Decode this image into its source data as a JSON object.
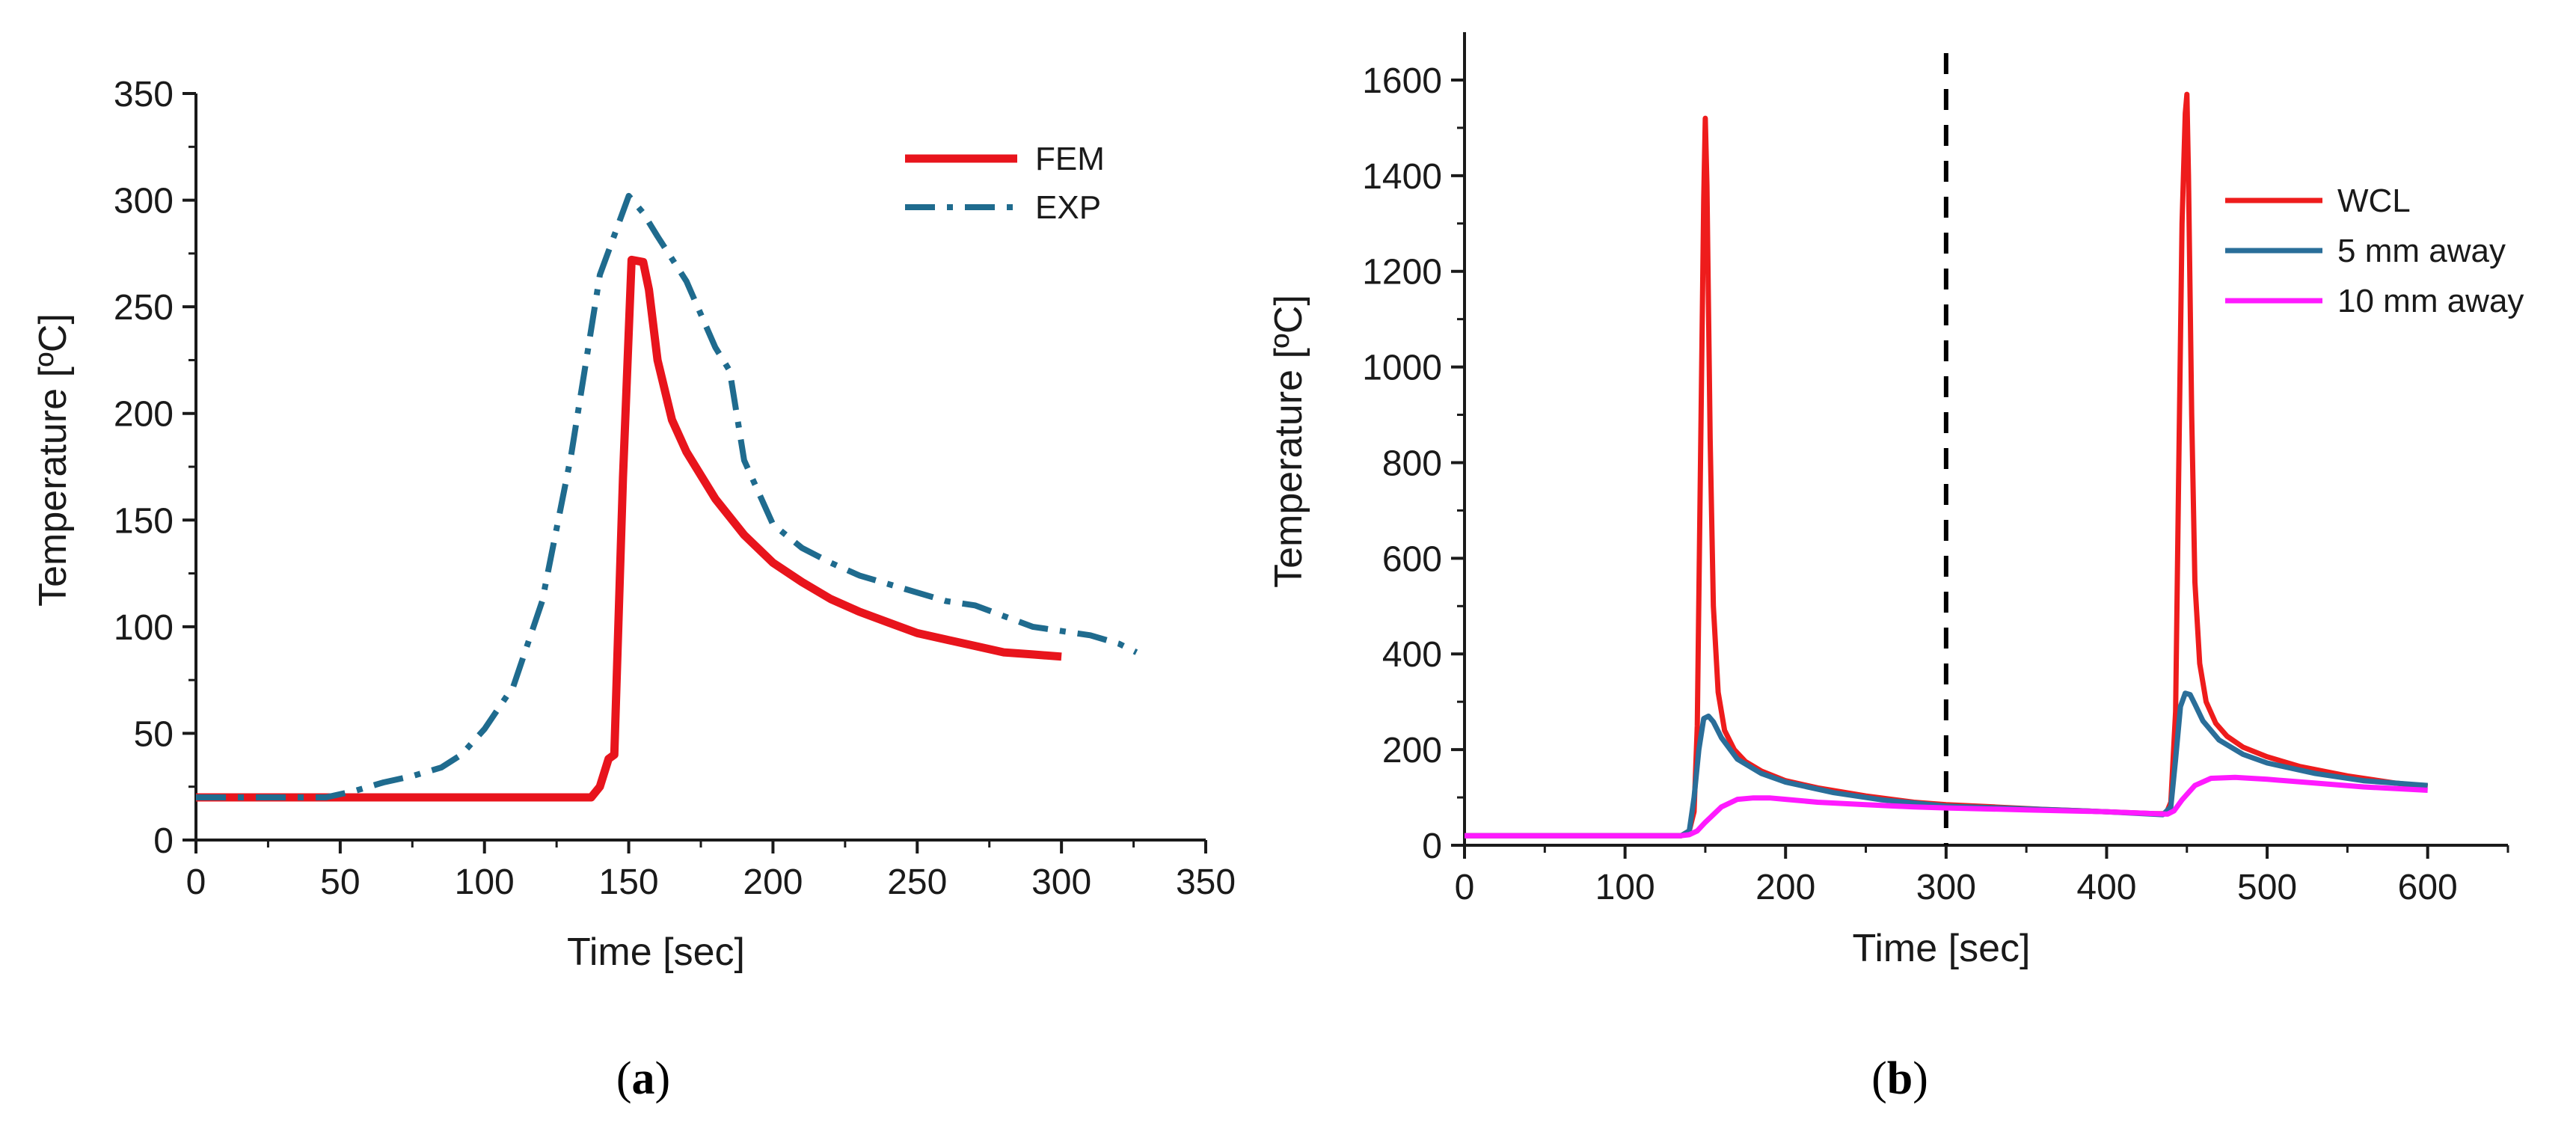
{
  "chart_data": [
    {
      "type": "line",
      "panel": "a",
      "caption": {
        "open": "(",
        "letter": "a",
        "close": ")"
      },
      "title": "",
      "xlabel": "Time [sec]",
      "ylabel": "Temperature [ºC]",
      "xlim": [
        0,
        350
      ],
      "ylim": [
        0,
        350
      ],
      "xticks": [
        0,
        50,
        100,
        150,
        200,
        250,
        300,
        350
      ],
      "yticks": [
        0,
        50,
        100,
        150,
        200,
        250,
        300,
        350
      ],
      "legend_position": "top-right",
      "series": [
        {
          "name": "FEM",
          "color": "#e8141c",
          "dash": "solid",
          "x": [
            0,
            137,
            140,
            143,
            145,
            148,
            151,
            155,
            157,
            160,
            165,
            170,
            180,
            190,
            200,
            210,
            220,
            230,
            240,
            250,
            260,
            270,
            280,
            290,
            300
          ],
          "y": [
            20,
            20,
            25,
            38,
            40,
            170,
            272,
            271,
            258,
            225,
            197,
            182,
            160,
            143,
            130,
            121,
            113,
            107,
            102,
            97,
            94,
            91,
            88,
            87,
            86
          ]
        },
        {
          "name": "EXP",
          "color": "#1f6b8e",
          "dash": "dashdot",
          "x": [
            0,
            45,
            55,
            65,
            75,
            85,
            92,
            100,
            110,
            120,
            130,
            140,
            150,
            155,
            160,
            170,
            180,
            185,
            190,
            200,
            210,
            220,
            230,
            240,
            250,
            260,
            270,
            280,
            290,
            300,
            310,
            320,
            326
          ],
          "y": [
            20,
            20,
            23,
            27,
            30,
            34,
            40,
            52,
            72,
            112,
            180,
            265,
            302,
            294,
            283,
            262,
            231,
            220,
            178,
            148,
            137,
            130,
            124,
            120,
            116,
            112,
            110,
            105,
            100,
            98,
            96,
            92,
            88
          ]
        }
      ]
    },
    {
      "type": "line",
      "panel": "b",
      "caption": {
        "open": "(",
        "letter": "b",
        "close": ")"
      },
      "title": "",
      "xlabel": "Time [sec]",
      "ylabel": "Temperature [ºC]",
      "xlim": [
        0,
        650
      ],
      "ylim": [
        0,
        1700
      ],
      "xticks": [
        0,
        100,
        200,
        300,
        400,
        500,
        600
      ],
      "yticks": [
        0,
        200,
        400,
        600,
        800,
        1000,
        1200,
        1400,
        1600
      ],
      "legend_position": "top-right",
      "vline": {
        "x": 300,
        "style": "dashed",
        "color": "#000000"
      },
      "series": [
        {
          "name": "WCL",
          "color": "#ee1c1c",
          "dash": "solid",
          "x": [
            0,
            135,
            140,
            143,
            145,
            147,
            149,
            150,
            151,
            153,
            155,
            158,
            162,
            168,
            175,
            185,
            200,
            220,
            250,
            280,
            300,
            330,
            360,
            400,
            430,
            437,
            440,
            443,
            445,
            447,
            449,
            450,
            451,
            453,
            455,
            458,
            462,
            468,
            475,
            485,
            500,
            520,
            550,
            580,
            600
          ],
          "y": [
            20,
            20,
            30,
            70,
            250,
            800,
            1350,
            1520,
            1380,
            850,
            500,
            320,
            240,
            200,
            175,
            155,
            135,
            120,
            103,
            90,
            85,
            80,
            75,
            70,
            66,
            66,
            90,
            280,
            800,
            1300,
            1530,
            1570,
            1400,
            900,
            550,
            380,
            300,
            255,
            228,
            205,
            185,
            165,
            145,
            130,
            123
          ]
        },
        {
          "name": "5 mm away",
          "color": "#2a6e99",
          "dash": "solid",
          "x": [
            0,
            135,
            140,
            143,
            146,
            149,
            152,
            155,
            160,
            170,
            185,
            200,
            230,
            260,
            300,
            350,
            400,
            435,
            440,
            443,
            446,
            449,
            452,
            455,
            460,
            470,
            485,
            500,
            530,
            560,
            600
          ],
          "y": [
            20,
            20,
            30,
            100,
            200,
            265,
            270,
            258,
            225,
            180,
            150,
            132,
            110,
            95,
            82,
            76,
            70,
            64,
            80,
            180,
            290,
            318,
            315,
            295,
            260,
            220,
            190,
            172,
            150,
            135,
            125
          ]
        },
        {
          "name": "10 mm away",
          "color": "#ff1aff",
          "dash": "solid",
          "x": [
            0,
            135,
            140,
            145,
            150,
            160,
            170,
            180,
            190,
            200,
            220,
            250,
            280,
            300,
            350,
            400,
            438,
            442,
            447,
            455,
            465,
            480,
            500,
            530,
            560,
            600
          ],
          "y": [
            20,
            20,
            22,
            30,
            48,
            80,
            96,
            99,
            99,
            96,
            90,
            85,
            80,
            78,
            74,
            70,
            65,
            72,
            95,
            125,
            140,
            142,
            138,
            130,
            122,
            115
          ]
        }
      ]
    }
  ]
}
